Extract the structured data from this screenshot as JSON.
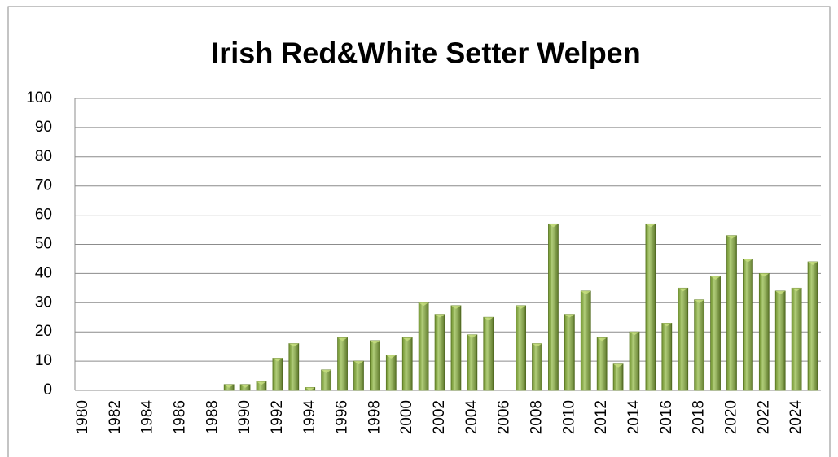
{
  "chart_data": {
    "type": "bar",
    "title": "Irish Red&White Setter Welpen",
    "categories": [
      "1980",
      null,
      "1982",
      null,
      "1984",
      null,
      "1986",
      null,
      "1988",
      null,
      "1990",
      null,
      "1992",
      null,
      "1994",
      null,
      "1996",
      null,
      "1998",
      null,
      "2000",
      null,
      "2002",
      null,
      "2004",
      null,
      "2006",
      null,
      "2008",
      null,
      "2010",
      null,
      "2012",
      null,
      "2014",
      null,
      "2016",
      null,
      "2018",
      null,
      "2020",
      null,
      "2022",
      null,
      "2024",
      null
    ],
    "values": [
      0,
      0,
      0,
      0,
      0,
      0,
      0,
      0,
      0,
      2,
      2,
      3,
      11,
      16,
      1,
      7,
      18,
      10,
      17,
      12,
      18,
      30,
      26,
      29,
      19,
      25,
      0,
      29,
      16,
      57,
      26,
      34,
      18,
      9,
      20,
      57,
      23,
      35,
      31,
      39,
      53,
      45,
      40,
      34,
      35,
      44
    ],
    "color": "#8fb840",
    "ylim": [
      0,
      100
    ],
    "yticks": [
      0,
      10,
      20,
      30,
      40,
      50,
      60,
      70,
      80,
      90,
      100
    ],
    "grid": true
  }
}
